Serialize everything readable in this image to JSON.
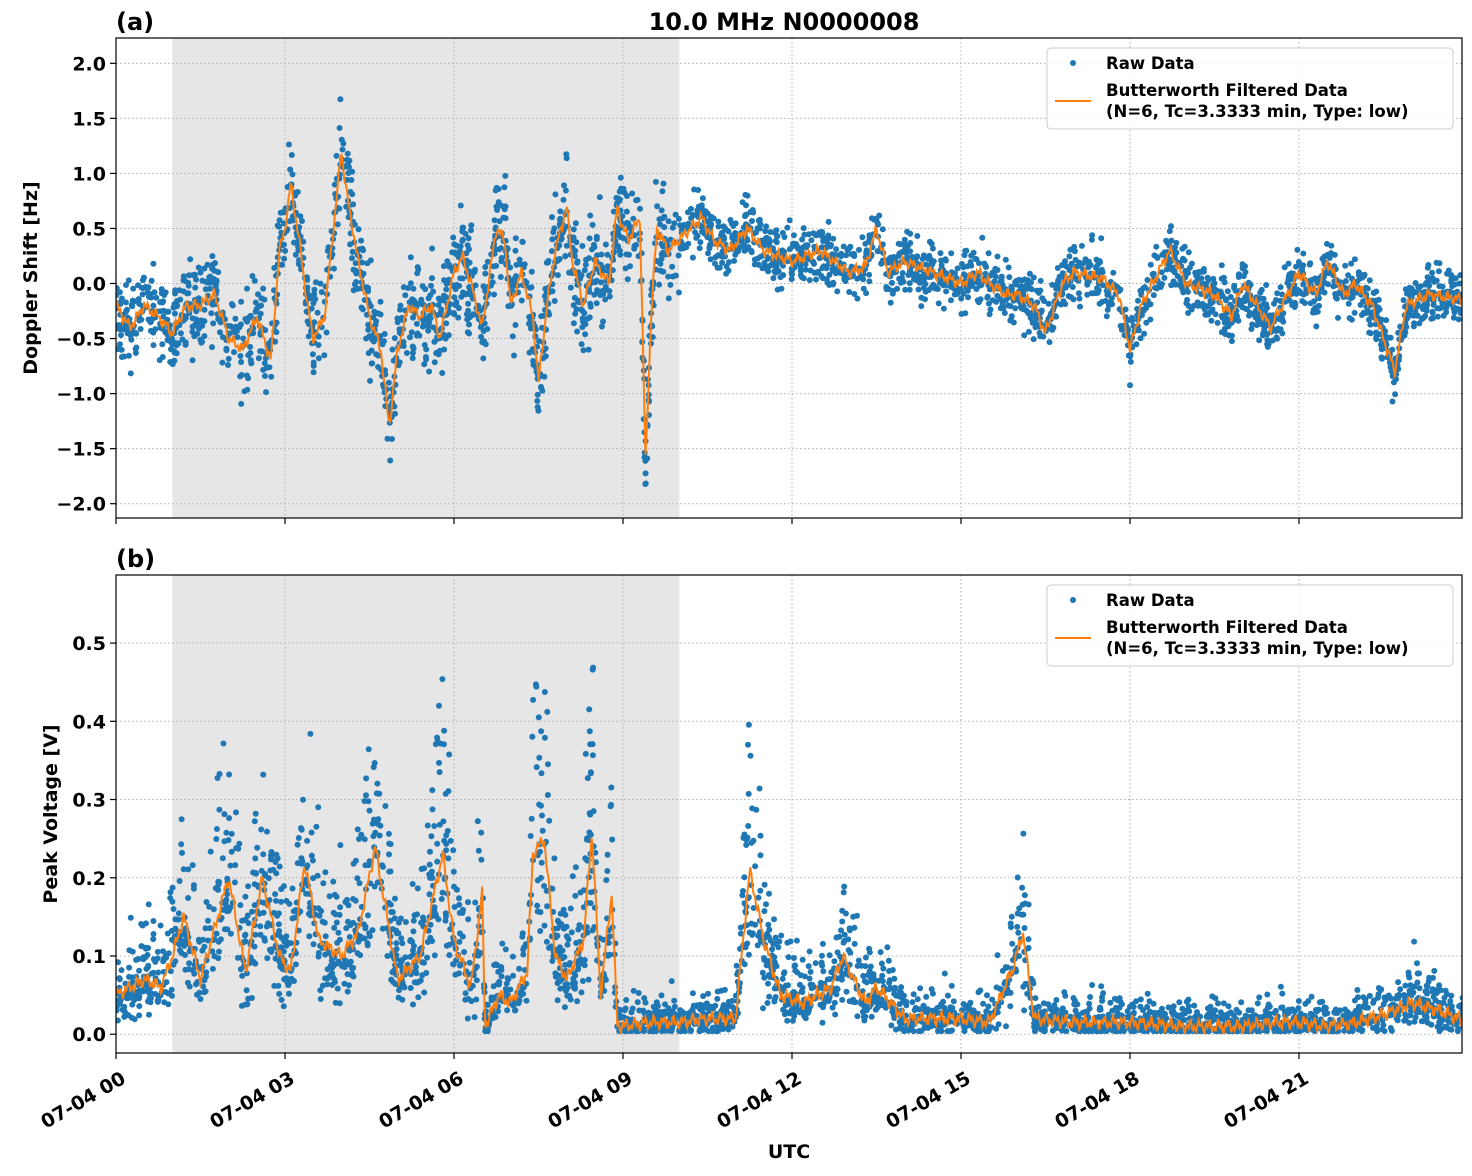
{
  "title": "10.0 MHz N0000008",
  "xlabel": "UTC",
  "colors": {
    "raw": "#1f77b4",
    "filtered": "#ff7f0e",
    "shade": "#e6e6e6"
  },
  "chart_data": [
    {
      "type": "scatter+line",
      "panel_label": "(a)",
      "ylabel": "Doppler Shift [Hz]",
      "xlim_hours": [
        0,
        24
      ],
      "ylim": [
        -2.13,
        2.23
      ],
      "yticks": [
        2.0,
        1.5,
        1.0,
        0.5,
        0.0,
        -0.5,
        -1.0,
        -1.5,
        -2.0
      ],
      "ytick_labels": [
        "2.0",
        "1.5",
        "1.0",
        "0.5",
        "0.0",
        "−0.5",
        "−1.0",
        "−1.5",
        "−2.0"
      ],
      "grid": true,
      "shaded_span_hours": [
        1.0,
        10.0
      ],
      "legend": {
        "placement": "top-right",
        "entries": [
          "Raw Data",
          "Butterworth Filtered Data",
          "(N=6, Tc=3.3333 min, Type: low)"
        ]
      },
      "series": [
        {
          "name": "Butterworth Filtered Data",
          "kind": "line",
          "x": [
            0,
            0.25,
            0.5,
            0.75,
            1.0,
            1.25,
            1.5,
            1.75,
            2.0,
            2.25,
            2.5,
            2.75,
            2.9,
            3.0,
            3.1,
            3.25,
            3.4,
            3.5,
            3.7,
            3.8,
            4.0,
            4.1,
            4.3,
            4.5,
            4.7,
            4.85,
            5.0,
            5.2,
            5.4,
            5.6,
            5.75,
            6.0,
            6.15,
            6.3,
            6.5,
            6.75,
            6.9,
            7.0,
            7.2,
            7.4,
            7.5,
            7.65,
            7.8,
            8.0,
            8.1,
            8.3,
            8.5,
            8.75,
            8.9,
            9.0,
            9.1,
            9.3,
            9.4,
            9.5,
            9.6,
            9.8,
            10.0,
            10.2,
            10.4,
            10.6,
            10.9,
            11.2,
            11.5,
            12,
            12.5,
            13,
            13.3,
            13.5,
            13.7,
            14,
            14.5,
            15,
            15.3,
            15.5,
            15.8,
            16,
            16.3,
            16.5,
            16.8,
            17,
            17.5,
            17.8,
            18,
            18.2,
            18.5,
            18.7,
            19,
            19.5,
            19.8,
            20,
            20.5,
            20.8,
            21,
            21.3,
            21.5,
            21.8,
            22,
            22.3,
            22.7,
            22.9,
            23.3,
            24
          ],
          "y": [
            -0.2,
            -0.4,
            -0.2,
            -0.3,
            -0.45,
            -0.2,
            -0.2,
            -0.1,
            -0.5,
            -0.6,
            -0.3,
            -0.7,
            0.3,
            0.5,
            0.9,
            0.4,
            -0.2,
            -0.5,
            -0.3,
            0.2,
            1.2,
            0.8,
            0.2,
            -0.3,
            -0.6,
            -1.3,
            -0.6,
            -0.2,
            -0.3,
            -0.2,
            -0.5,
            0.1,
            0.25,
            0.0,
            -0.4,
            0.5,
            0.4,
            -0.2,
            0.1,
            -0.3,
            -0.9,
            -0.2,
            0.3,
            0.7,
            0.2,
            -0.2,
            0.2,
            0.0,
            0.7,
            0.5,
            0.4,
            0.6,
            -1.6,
            -0.3,
            0.5,
            0.3,
            0.4,
            0.5,
            0.6,
            0.4,
            0.3,
            0.5,
            0.3,
            0.2,
            0.3,
            0.1,
            0.15,
            0.5,
            0.1,
            0.2,
            0.1,
            0.0,
            0.1,
            0.0,
            -0.1,
            -0.1,
            -0.2,
            -0.45,
            0.0,
            0.1,
            0.05,
            -0.1,
            -0.6,
            -0.2,
            0.1,
            0.3,
            0.0,
            -0.1,
            -0.3,
            0.0,
            -0.4,
            -0.1,
            0.1,
            -0.1,
            0.2,
            -0.1,
            0.0,
            -0.2,
            -0.8,
            -0.2,
            -0.1,
            -0.15
          ]
        },
        {
          "name": "Raw Data",
          "kind": "scatter"
        }
      ]
    },
    {
      "type": "scatter+line",
      "panel_label": "(b)",
      "ylabel": "Peak Voltage [V]",
      "xlim_hours": [
        0,
        24
      ],
      "ylim": [
        -0.024,
        0.587
      ],
      "yticks": [
        0.5,
        0.4,
        0.3,
        0.2,
        0.1,
        0.0
      ],
      "ytick_labels": [
        "0.5",
        "0.4",
        "0.3",
        "0.2",
        "0.1",
        "0.0"
      ],
      "grid": true,
      "shaded_span_hours": [
        1.0,
        10.0
      ],
      "legend": {
        "placement": "top-right",
        "entries": [
          "Raw Data",
          "Butterworth Filtered Data",
          "(N=6, Tc=3.3333 min, Type: low)"
        ]
      },
      "series": [
        {
          "name": "Butterworth Filtered Data",
          "kind": "line",
          "x": [
            0,
            0.5,
            0.8,
            1.0,
            1.2,
            1.5,
            2.0,
            2.3,
            2.6,
            2.9,
            3.1,
            3.35,
            3.6,
            4.0,
            4.3,
            4.6,
            5.0,
            5.4,
            5.8,
            6.0,
            6.3,
            6.5,
            6.55,
            6.8,
            7.0,
            7.3,
            7.4,
            7.6,
            7.8,
            8.0,
            8.3,
            8.45,
            8.6,
            8.8,
            8.9,
            9.5,
            10,
            10.5,
            11,
            11.25,
            11.5,
            11.8,
            12.2,
            12.7,
            12.9,
            13.3,
            13.5,
            14,
            15,
            15.5,
            15.9,
            16.1,
            16.3,
            17,
            18,
            19,
            20,
            20.5,
            21,
            21.5,
            22,
            22.5,
            23,
            23.5,
            24
          ],
          "y": [
            0.05,
            0.07,
            0.06,
            0.1,
            0.15,
            0.07,
            0.2,
            0.08,
            0.2,
            0.1,
            0.08,
            0.22,
            0.12,
            0.1,
            0.13,
            0.24,
            0.07,
            0.1,
            0.23,
            0.12,
            0.06,
            0.18,
            0.01,
            0.05,
            0.04,
            0.08,
            0.23,
            0.25,
            0.1,
            0.07,
            0.12,
            0.26,
            0.05,
            0.18,
            0.01,
            0.015,
            0.015,
            0.02,
            0.02,
            0.21,
            0.12,
            0.05,
            0.04,
            0.06,
            0.1,
            0.04,
            0.06,
            0.02,
            0.02,
            0.015,
            0.08,
            0.13,
            0.02,
            0.015,
            0.015,
            0.01,
            0.01,
            0.015,
            0.015,
            0.01,
            0.015,
            0.025,
            0.04,
            0.03,
            0.015
          ]
        },
        {
          "name": "Raw Data",
          "kind": "scatter"
        }
      ]
    }
  ],
  "xticks": [
    "07-04 00",
    "07-04 03",
    "07-04 06",
    "07-04 09",
    "07-04 12",
    "07-04 15",
    "07-04 18",
    "07-04 21"
  ],
  "xtick_hours": [
    0,
    3,
    6,
    9,
    12,
    15,
    18,
    21
  ]
}
